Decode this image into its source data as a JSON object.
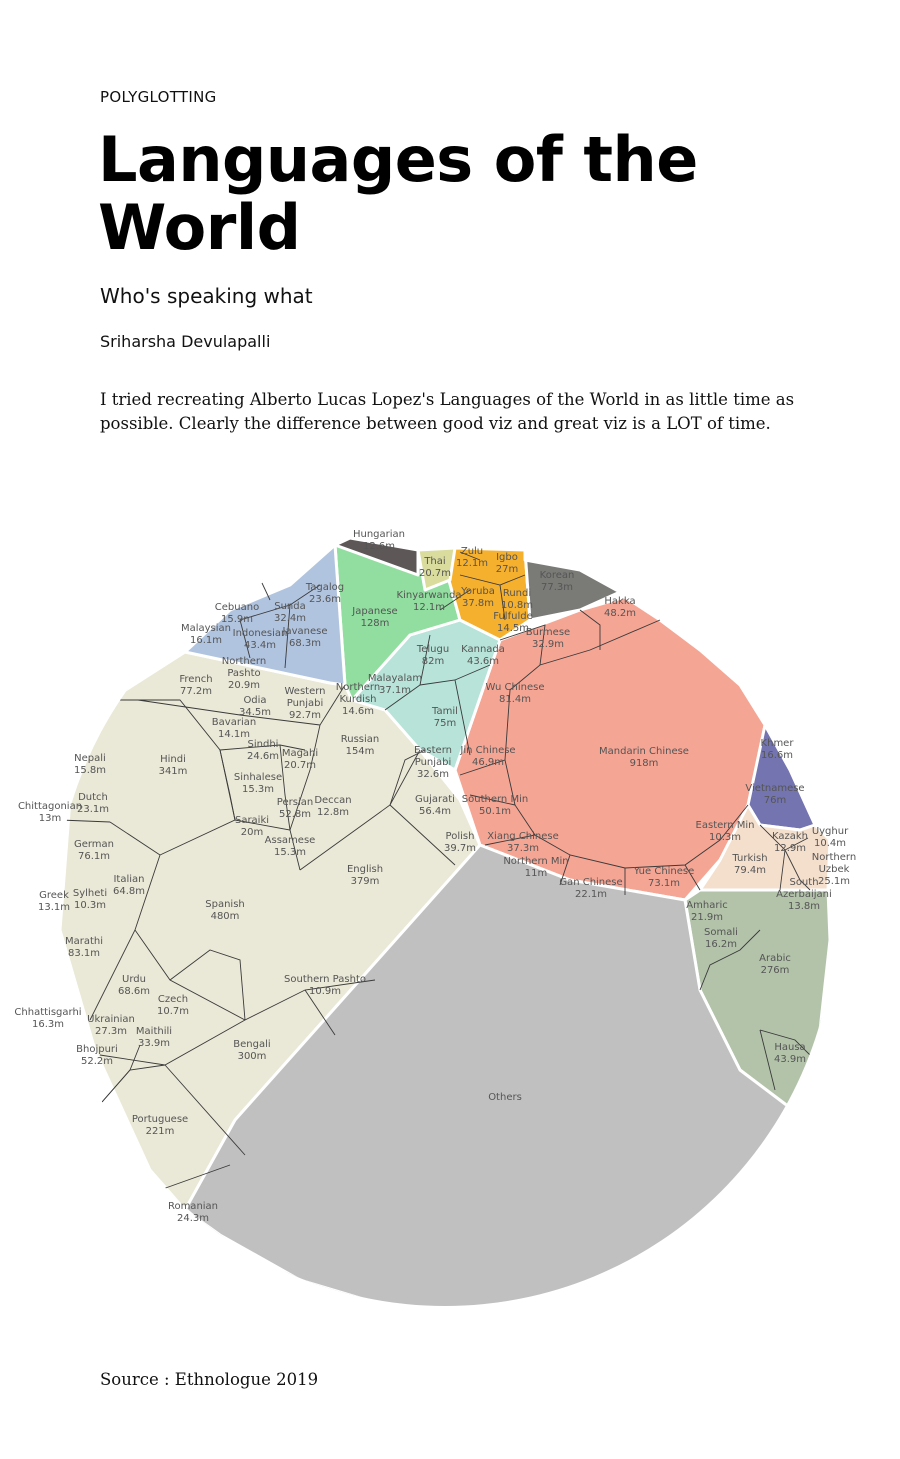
{
  "header": {
    "kicker": "POLYGLOTTING",
    "title": "Languages of the World",
    "subtitle": "Who's speaking what",
    "author": "Sriharsha Devulapalli",
    "description": "I tried recreating Alberto Lucas Lopez's Languages of the World in as little time as possible. Clearly the difference between good viz and great viz is a LOT of time."
  },
  "footer": {
    "source": "Source : Ethnologue 2019"
  },
  "chart_data": {
    "type": "voronoi-treemap",
    "unit": "m",
    "groups": [
      {
        "color": "#eae8d6",
        "items": [
          {
            "name": "Spanish",
            "value": "480m"
          },
          {
            "name": "English",
            "value": "379m"
          },
          {
            "name": "Hindi",
            "value": "341m"
          },
          {
            "name": "Bengali",
            "value": "300m"
          },
          {
            "name": "Portuguese",
            "value": "221m"
          },
          {
            "name": "Russian",
            "value": "154m"
          },
          {
            "name": "Western Punjabi",
            "value": "92.7m"
          },
          {
            "name": "Marathi",
            "value": "83.1m"
          },
          {
            "name": "French",
            "value": "77.2m"
          },
          {
            "name": "German",
            "value": "76.1m"
          },
          {
            "name": "Urdu",
            "value": "68.6m"
          },
          {
            "name": "Italian",
            "value": "64.8m"
          },
          {
            "name": "Gujarati",
            "value": "56.4m"
          },
          {
            "name": "Bhojpuri",
            "value": "52.2m"
          },
          {
            "name": "Persian",
            "value": "52.8m"
          },
          {
            "name": "Polish",
            "value": "39.7m"
          },
          {
            "name": "Odia",
            "value": "34.5m"
          },
          {
            "name": "Maithili",
            "value": "33.9m"
          },
          {
            "name": "Eastern Punjabi",
            "value": "32.6m"
          },
          {
            "name": "Ukrainian",
            "value": "27.3m"
          },
          {
            "name": "Sindhi",
            "value": "24.6m"
          },
          {
            "name": "Romanian",
            "value": "24.3m"
          },
          {
            "name": "Dutch",
            "value": "23.1m"
          },
          {
            "name": "Northern Pashto",
            "value": "20.9m"
          },
          {
            "name": "Magahi",
            "value": "20.7m"
          },
          {
            "name": "Saraiki",
            "value": "20m"
          },
          {
            "name": "Chhattisgarhi",
            "value": "16.3m"
          },
          {
            "name": "Nepali",
            "value": "15.8m"
          },
          {
            "name": "Sinhalese",
            "value": "15.3m"
          },
          {
            "name": "Assamese",
            "value": "15.3m"
          },
          {
            "name": "Northern Kurdish",
            "value": "14.6m"
          },
          {
            "name": "Bavarian",
            "value": "14.1m"
          },
          {
            "name": "Chittagonian",
            "value": "13m"
          },
          {
            "name": "Greek",
            "value": "13.1m"
          },
          {
            "name": "Deccan",
            "value": "12.8m"
          },
          {
            "name": "Southern Pashto",
            "value": "10.9m"
          },
          {
            "name": "Czech",
            "value": "10.7m"
          },
          {
            "name": "Sylheti",
            "value": "10.3m"
          }
        ]
      },
      {
        "color": "#f4a594",
        "items": [
          {
            "name": "Mandarin Chinese",
            "value": "918m"
          },
          {
            "name": "Wu Chinese",
            "value": "81.4m"
          },
          {
            "name": "Yue Chinese",
            "value": "73.1m"
          },
          {
            "name": "Southern Min",
            "value": "50.1m"
          },
          {
            "name": "Hakka",
            "value": "48.2m"
          },
          {
            "name": "Jin Chinese",
            "value": "46.9m"
          },
          {
            "name": "Xiang Chinese",
            "value": "37.3m"
          },
          {
            "name": "Burmese",
            "value": "32.9m"
          },
          {
            "name": "Gan Chinese",
            "value": "22.1m"
          },
          {
            "name": "Northern Min",
            "value": "11m"
          },
          {
            "name": "Eastern Min",
            "value": "10.3m"
          }
        ]
      },
      {
        "color": "#b7e3d8",
        "items": [
          {
            "name": "Telugu",
            "value": "82m"
          },
          {
            "name": "Tamil",
            "value": "75m"
          },
          {
            "name": "Kannada",
            "value": "43.6m"
          },
          {
            "name": "Malayalam",
            "value": "37.1m"
          }
        ]
      },
      {
        "color": "#92dea0",
        "items": [
          {
            "name": "Japanese",
            "value": "128m"
          }
        ]
      },
      {
        "color": "#b1c4df",
        "items": [
          {
            "name": "Javanese",
            "value": "68.3m"
          },
          {
            "name": "Indonesian",
            "value": "43.4m"
          },
          {
            "name": "Sunda",
            "value": "32.4m"
          },
          {
            "name": "Tagalog",
            "value": "23.6m"
          },
          {
            "name": "Malaysian",
            "value": "16.1m"
          },
          {
            "name": "Cebuano",
            "value": "15.9m"
          }
        ]
      },
      {
        "color": "#f5b02e",
        "items": [
          {
            "name": "Yoruba",
            "value": "37.8m"
          },
          {
            "name": "Igbo",
            "value": "27m"
          },
          {
            "name": "Fulfulde",
            "value": "14.5m"
          },
          {
            "name": "Kinyarwanda",
            "value": "12.1m"
          },
          {
            "name": "Zulu",
            "value": "12.1m"
          },
          {
            "name": "Rundi",
            "value": "10.8m"
          }
        ]
      },
      {
        "color": "#7a7a77",
        "items": [
          {
            "name": "Korean",
            "value": "77.3m"
          }
        ]
      },
      {
        "color": "#5e5758",
        "items": [
          {
            "name": "Hungarian",
            "value": "12.6m"
          }
        ]
      },
      {
        "color": "#d9dc9d",
        "items": [
          {
            "name": "Thai",
            "value": "20.7m"
          }
        ]
      },
      {
        "color": "#7474b0",
        "items": [
          {
            "name": "Vietnamese",
            "value": "76m"
          },
          {
            "name": "Khmer",
            "value": "16.6m"
          }
        ]
      },
      {
        "color": "#f4dfcd",
        "items": [
          {
            "name": "Turkish",
            "value": "79.4m"
          },
          {
            "name": "Northern Uzbek",
            "value": "25.1m"
          },
          {
            "name": "South Azerbaijani",
            "value": "13.8m"
          },
          {
            "name": "Kazakh",
            "value": "12.9m"
          },
          {
            "name": "Uyghur",
            "value": "10.4m"
          }
        ]
      },
      {
        "color": "#b3c3aa",
        "items": [
          {
            "name": "Arabic",
            "value": "276m"
          },
          {
            "name": "Hausa",
            "value": "43.9m"
          },
          {
            "name": "Amharic",
            "value": "21.9m"
          },
          {
            "name": "Somali",
            "value": "16.2m"
          }
        ]
      },
      {
        "color": "#c0c0c0",
        "items": [
          {
            "name": "Others",
            "value": ""
          }
        ]
      }
    ]
  }
}
